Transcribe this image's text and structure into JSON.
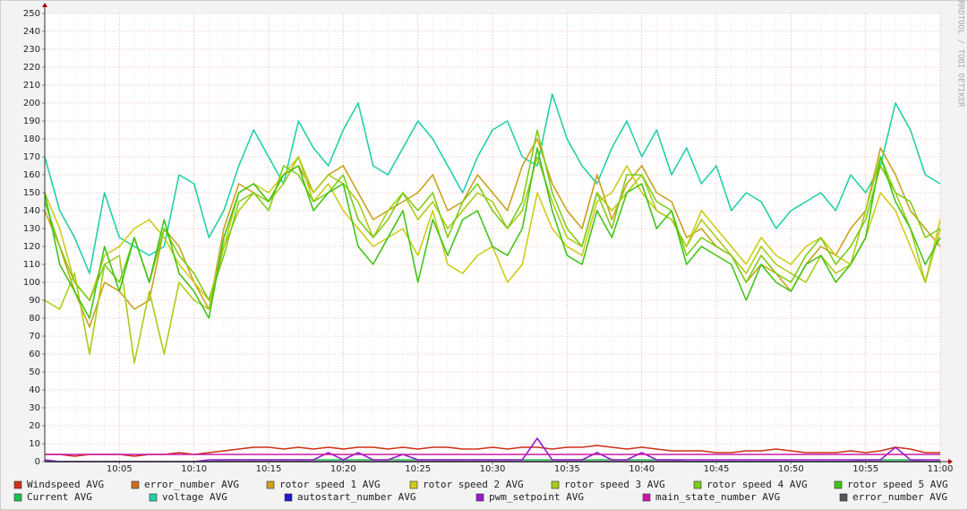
{
  "chart_data": {
    "type": "line",
    "watermark": "RRDTOOL / TOBI OETIKER",
    "categories": [
      null,
      null,
      null,
      null,
      null,
      "10:05",
      null,
      null,
      null,
      null,
      "10:10",
      null,
      null,
      null,
      null,
      "10:15",
      null,
      null,
      null,
      null,
      "10:20",
      null,
      null,
      null,
      null,
      "10:25",
      null,
      null,
      null,
      null,
      "10:30",
      null,
      null,
      null,
      null,
      "10:35",
      null,
      null,
      null,
      null,
      "10:40",
      null,
      null,
      null,
      null,
      "10:45",
      null,
      null,
      null,
      null,
      "10:50",
      null,
      null,
      null,
      null,
      "10:55",
      null,
      null,
      null,
      null,
      "11:00"
    ],
    "ylim": [
      0,
      250
    ],
    "yticks": [
      0,
      10,
      20,
      30,
      40,
      50,
      60,
      70,
      80,
      90,
      100,
      110,
      120,
      130,
      140,
      150,
      160,
      170,
      180,
      190,
      200,
      210,
      220,
      230,
      240,
      250
    ],
    "grid": true,
    "series": [
      {
        "name": "Windspeed AVG",
        "color": "#cc3118",
        "values": [
          4,
          4,
          3,
          4,
          4,
          4,
          3,
          4,
          4,
          5,
          4,
          5,
          6,
          7,
          8,
          8,
          7,
          8,
          7,
          8,
          7,
          8,
          8,
          7,
          8,
          7,
          8,
          8,
          7,
          7,
          8,
          7,
          8,
          8,
          7,
          8,
          8,
          9,
          8,
          7,
          8,
          7,
          6,
          6,
          6,
          5,
          5,
          6,
          6,
          7,
          6,
          5,
          5,
          5,
          6,
          5,
          6,
          8,
          7,
          5,
          5
        ]
      },
      {
        "name": "error_number AVG",
        "color": "#cc7016",
        "values": [
          0,
          0,
          0,
          0,
          0,
          0,
          0,
          0,
          0,
          0,
          0,
          0,
          0,
          0,
          0,
          0,
          0,
          0,
          0,
          0,
          0,
          0,
          0,
          0,
          0,
          0,
          0,
          0,
          0,
          0,
          0,
          0,
          0,
          0,
          0,
          0,
          0,
          0,
          0,
          0,
          0,
          0,
          0,
          0,
          0,
          0,
          0,
          0,
          0,
          0,
          0,
          0,
          0,
          0,
          0,
          0,
          0,
          0,
          0,
          0,
          0
        ]
      },
      {
        "name": "rotor speed 1 AVG",
        "color": "#c9a11b",
        "values": [
          140,
          120,
          95,
          75,
          100,
          95,
          85,
          90,
          130,
          120,
          100,
          85,
          130,
          155,
          150,
          145,
          160,
          165,
          150,
          160,
          165,
          150,
          135,
          140,
          145,
          150,
          160,
          140,
          145,
          160,
          150,
          140,
          165,
          180,
          155,
          140,
          130,
          160,
          135,
          155,
          165,
          150,
          145,
          125,
          130,
          120,
          115,
          100,
          110,
          105,
          95,
          110,
          120,
          115,
          130,
          140,
          175,
          160,
          140,
          130,
          120
        ]
      },
      {
        "name": "rotor speed 2 AVG",
        "color": "#cccc18",
        "values": [
          150,
          130,
          100,
          90,
          115,
          120,
          130,
          135,
          125,
          110,
          100,
          90,
          120,
          150,
          155,
          150,
          160,
          170,
          145,
          155,
          140,
          130,
          120,
          125,
          130,
          115,
          140,
          110,
          105,
          115,
          120,
          100,
          110,
          150,
          130,
          120,
          115,
          145,
          150,
          165,
          150,
          140,
          135,
          120,
          140,
          130,
          120,
          110,
          125,
          115,
          110,
          120,
          125,
          115,
          110,
          125,
          150,
          140,
          120,
          100,
          135
        ]
      },
      {
        "name": "rotor speed 3 AVG",
        "color": "#a8cc18",
        "values": [
          90,
          85,
          105,
          60,
          110,
          115,
          55,
          95,
          60,
          100,
          90,
          85,
          120,
          140,
          150,
          145,
          155,
          170,
          150,
          160,
          155,
          145,
          125,
          140,
          150,
          135,
          145,
          130,
          140,
          150,
          145,
          130,
          140,
          170,
          145,
          125,
          120,
          150,
          140,
          150,
          160,
          140,
          135,
          120,
          135,
          125,
          115,
          105,
          120,
          110,
          105,
          100,
          115,
          105,
          110,
          140,
          170,
          150,
          130,
          100,
          130
        ]
      },
      {
        "name": "rotor speed 4 AVG",
        "color": "#7ccc18",
        "values": [
          145,
          120,
          100,
          90,
          110,
          100,
          125,
          100,
          130,
          115,
          105,
          90,
          115,
          145,
          150,
          140,
          165,
          160,
          145,
          150,
          160,
          135,
          125,
          135,
          150,
          140,
          150,
          125,
          145,
          155,
          140,
          130,
          145,
          185,
          150,
          130,
          120,
          150,
          130,
          160,
          160,
          145,
          140,
          115,
          125,
          120,
          115,
          100,
          115,
          105,
          100,
          115,
          125,
          110,
          120,
          135,
          165,
          150,
          145,
          125,
          130
        ]
      },
      {
        "name": "rotor speed 5 AVG",
        "color": "#40c418",
        "values": [
          150,
          110,
          95,
          80,
          120,
          95,
          125,
          100,
          135,
          105,
          95,
          80,
          125,
          150,
          155,
          145,
          160,
          165,
          140,
          150,
          155,
          120,
          110,
          125,
          140,
          100,
          135,
          115,
          135,
          140,
          120,
          115,
          130,
          175,
          140,
          115,
          110,
          140,
          125,
          150,
          155,
          130,
          140,
          110,
          120,
          115,
          110,
          90,
          110,
          100,
          95,
          110,
          115,
          100,
          110,
          125,
          170,
          145,
          130,
          110,
          125
        ]
      },
      {
        "name": "Current AVG",
        "color": "#20c050",
        "values": [
          0,
          0,
          0,
          0,
          0,
          0,
          0,
          0,
          0,
          0,
          0,
          0,
          1,
          1,
          1,
          1,
          1,
          1,
          1,
          1,
          1,
          1,
          1,
          1,
          1,
          1,
          1,
          1,
          1,
          1,
          1,
          1,
          1,
          1,
          1,
          1,
          1,
          1,
          1,
          1,
          1,
          1,
          1,
          0,
          0,
          0,
          0,
          0,
          0,
          0,
          0,
          0,
          0,
          0,
          0,
          1,
          1,
          1,
          1,
          0,
          0
        ]
      },
      {
        "name": "voltage AVG",
        "color": "#20d0a8",
        "values": [
          170,
          140,
          125,
          105,
          150,
          125,
          120,
          115,
          120,
          160,
          155,
          125,
          140,
          165,
          185,
          170,
          155,
          190,
          175,
          165,
          185,
          200,
          165,
          160,
          175,
          190,
          180,
          165,
          150,
          170,
          185,
          190,
          170,
          165,
          205,
          180,
          165,
          155,
          175,
          190,
          170,
          185,
          160,
          175,
          155,
          165,
          140,
          150,
          145,
          130,
          140,
          145,
          150,
          140,
          160,
          150,
          165,
          200,
          185,
          160,
          155
        ]
      },
      {
        "name": "autostart_number AVG",
        "color": "#2018cc",
        "values": [
          0,
          0,
          0,
          0,
          0,
          0,
          0,
          0,
          0,
          0,
          0,
          0,
          0,
          0,
          0,
          0,
          0,
          0,
          0,
          0,
          0,
          0,
          0,
          0,
          0,
          0,
          0,
          0,
          0,
          0,
          0,
          0,
          0,
          0,
          0,
          0,
          0,
          0,
          0,
          0,
          0,
          0,
          0,
          0,
          0,
          0,
          0,
          0,
          0,
          0,
          0,
          0,
          0,
          0,
          0,
          0,
          0,
          0,
          0,
          0,
          0
        ]
      },
      {
        "name": "pwm_setpoint AVG",
        "color": "#9a18cc",
        "values": [
          1,
          0,
          0,
          0,
          0,
          0,
          0,
          0,
          0,
          0,
          0,
          1,
          1,
          1,
          1,
          1,
          1,
          1,
          1,
          5,
          1,
          5,
          1,
          1,
          4,
          1,
          1,
          1,
          1,
          1,
          1,
          1,
          1,
          13,
          1,
          1,
          1,
          5,
          1,
          1,
          5,
          1,
          1,
          1,
          1,
          1,
          1,
          1,
          1,
          1,
          1,
          1,
          1,
          1,
          1,
          1,
          1,
          8,
          1,
          1,
          1
        ]
      },
      {
        "name": "main_state_number AVG",
        "color": "#cc18a8",
        "values": [
          4,
          4,
          4,
          4,
          4,
          4,
          4,
          4,
          4,
          4,
          4,
          4,
          4,
          4,
          4,
          4,
          4,
          4,
          4,
          4,
          4,
          4,
          4,
          4,
          4,
          4,
          4,
          4,
          4,
          4,
          4,
          4,
          4,
          4,
          4,
          4,
          4,
          4,
          4,
          4,
          4,
          4,
          4,
          4,
          4,
          4,
          4,
          4,
          4,
          4,
          4,
          4,
          4,
          4,
          4,
          4,
          4,
          4,
          4,
          4,
          4
        ]
      },
      {
        "name": "error_number AVG",
        "color": "#555555",
        "values": [
          0,
          0,
          0,
          0,
          0,
          0,
          0,
          0,
          0,
          0,
          0,
          0,
          0,
          0,
          0,
          0,
          0,
          0,
          0,
          0,
          0,
          0,
          0,
          0,
          0,
          0,
          0,
          0,
          0,
          0,
          0,
          0,
          0,
          0,
          0,
          0,
          0,
          0,
          0,
          0,
          0,
          0,
          0,
          0,
          0,
          0,
          0,
          0,
          0,
          0,
          0,
          0,
          0,
          0,
          0,
          0,
          0,
          0,
          0,
          0,
          0
        ]
      }
    ]
  }
}
